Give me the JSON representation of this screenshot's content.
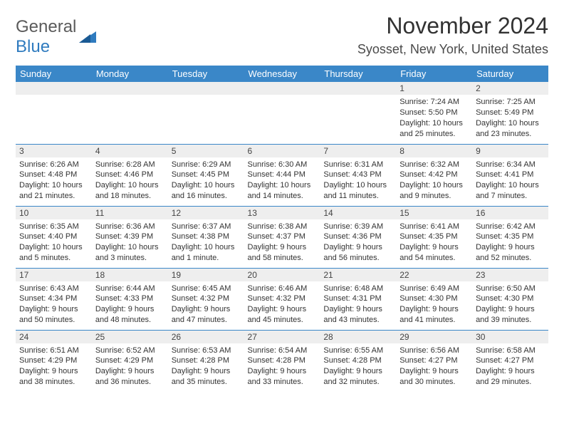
{
  "logo": {
    "word1": "General",
    "word2": "Blue"
  },
  "title": "November 2024",
  "location": "Syosset, New York, United States",
  "colors": {
    "header_bg": "#3a87c8",
    "header_text": "#ffffff",
    "daynum_bg": "#eeeeee",
    "row_divider": "#3a87c8",
    "logo_gray": "#5a5a5a",
    "logo_blue": "#2f7bbf"
  },
  "day_headers": [
    "Sunday",
    "Monday",
    "Tuesday",
    "Wednesday",
    "Thursday",
    "Friday",
    "Saturday"
  ],
  "weeks": [
    [
      {
        "n": "",
        "sr": "",
        "ss": "",
        "dl": ""
      },
      {
        "n": "",
        "sr": "",
        "ss": "",
        "dl": ""
      },
      {
        "n": "",
        "sr": "",
        "ss": "",
        "dl": ""
      },
      {
        "n": "",
        "sr": "",
        "ss": "",
        "dl": ""
      },
      {
        "n": "",
        "sr": "",
        "ss": "",
        "dl": ""
      },
      {
        "n": "1",
        "sr": "Sunrise: 7:24 AM",
        "ss": "Sunset: 5:50 PM",
        "dl": "Daylight: 10 hours and 25 minutes."
      },
      {
        "n": "2",
        "sr": "Sunrise: 7:25 AM",
        "ss": "Sunset: 5:49 PM",
        "dl": "Daylight: 10 hours and 23 minutes."
      }
    ],
    [
      {
        "n": "3",
        "sr": "Sunrise: 6:26 AM",
        "ss": "Sunset: 4:48 PM",
        "dl": "Daylight: 10 hours and 21 minutes."
      },
      {
        "n": "4",
        "sr": "Sunrise: 6:28 AM",
        "ss": "Sunset: 4:46 PM",
        "dl": "Daylight: 10 hours and 18 minutes."
      },
      {
        "n": "5",
        "sr": "Sunrise: 6:29 AM",
        "ss": "Sunset: 4:45 PM",
        "dl": "Daylight: 10 hours and 16 minutes."
      },
      {
        "n": "6",
        "sr": "Sunrise: 6:30 AM",
        "ss": "Sunset: 4:44 PM",
        "dl": "Daylight: 10 hours and 14 minutes."
      },
      {
        "n": "7",
        "sr": "Sunrise: 6:31 AM",
        "ss": "Sunset: 4:43 PM",
        "dl": "Daylight: 10 hours and 11 minutes."
      },
      {
        "n": "8",
        "sr": "Sunrise: 6:32 AM",
        "ss": "Sunset: 4:42 PM",
        "dl": "Daylight: 10 hours and 9 minutes."
      },
      {
        "n": "9",
        "sr": "Sunrise: 6:34 AM",
        "ss": "Sunset: 4:41 PM",
        "dl": "Daylight: 10 hours and 7 minutes."
      }
    ],
    [
      {
        "n": "10",
        "sr": "Sunrise: 6:35 AM",
        "ss": "Sunset: 4:40 PM",
        "dl": "Daylight: 10 hours and 5 minutes."
      },
      {
        "n": "11",
        "sr": "Sunrise: 6:36 AM",
        "ss": "Sunset: 4:39 PM",
        "dl": "Daylight: 10 hours and 3 minutes."
      },
      {
        "n": "12",
        "sr": "Sunrise: 6:37 AM",
        "ss": "Sunset: 4:38 PM",
        "dl": "Daylight: 10 hours and 1 minute."
      },
      {
        "n": "13",
        "sr": "Sunrise: 6:38 AM",
        "ss": "Sunset: 4:37 PM",
        "dl": "Daylight: 9 hours and 58 minutes."
      },
      {
        "n": "14",
        "sr": "Sunrise: 6:39 AM",
        "ss": "Sunset: 4:36 PM",
        "dl": "Daylight: 9 hours and 56 minutes."
      },
      {
        "n": "15",
        "sr": "Sunrise: 6:41 AM",
        "ss": "Sunset: 4:35 PM",
        "dl": "Daylight: 9 hours and 54 minutes."
      },
      {
        "n": "16",
        "sr": "Sunrise: 6:42 AM",
        "ss": "Sunset: 4:35 PM",
        "dl": "Daylight: 9 hours and 52 minutes."
      }
    ],
    [
      {
        "n": "17",
        "sr": "Sunrise: 6:43 AM",
        "ss": "Sunset: 4:34 PM",
        "dl": "Daylight: 9 hours and 50 minutes."
      },
      {
        "n": "18",
        "sr": "Sunrise: 6:44 AM",
        "ss": "Sunset: 4:33 PM",
        "dl": "Daylight: 9 hours and 48 minutes."
      },
      {
        "n": "19",
        "sr": "Sunrise: 6:45 AM",
        "ss": "Sunset: 4:32 PM",
        "dl": "Daylight: 9 hours and 47 minutes."
      },
      {
        "n": "20",
        "sr": "Sunrise: 6:46 AM",
        "ss": "Sunset: 4:32 PM",
        "dl": "Daylight: 9 hours and 45 minutes."
      },
      {
        "n": "21",
        "sr": "Sunrise: 6:48 AM",
        "ss": "Sunset: 4:31 PM",
        "dl": "Daylight: 9 hours and 43 minutes."
      },
      {
        "n": "22",
        "sr": "Sunrise: 6:49 AM",
        "ss": "Sunset: 4:30 PM",
        "dl": "Daylight: 9 hours and 41 minutes."
      },
      {
        "n": "23",
        "sr": "Sunrise: 6:50 AM",
        "ss": "Sunset: 4:30 PM",
        "dl": "Daylight: 9 hours and 39 minutes."
      }
    ],
    [
      {
        "n": "24",
        "sr": "Sunrise: 6:51 AM",
        "ss": "Sunset: 4:29 PM",
        "dl": "Daylight: 9 hours and 38 minutes."
      },
      {
        "n": "25",
        "sr": "Sunrise: 6:52 AM",
        "ss": "Sunset: 4:29 PM",
        "dl": "Daylight: 9 hours and 36 minutes."
      },
      {
        "n": "26",
        "sr": "Sunrise: 6:53 AM",
        "ss": "Sunset: 4:28 PM",
        "dl": "Daylight: 9 hours and 35 minutes."
      },
      {
        "n": "27",
        "sr": "Sunrise: 6:54 AM",
        "ss": "Sunset: 4:28 PM",
        "dl": "Daylight: 9 hours and 33 minutes."
      },
      {
        "n": "28",
        "sr": "Sunrise: 6:55 AM",
        "ss": "Sunset: 4:28 PM",
        "dl": "Daylight: 9 hours and 32 minutes."
      },
      {
        "n": "29",
        "sr": "Sunrise: 6:56 AM",
        "ss": "Sunset: 4:27 PM",
        "dl": "Daylight: 9 hours and 30 minutes."
      },
      {
        "n": "30",
        "sr": "Sunrise: 6:58 AM",
        "ss": "Sunset: 4:27 PM",
        "dl": "Daylight: 9 hours and 29 minutes."
      }
    ]
  ]
}
